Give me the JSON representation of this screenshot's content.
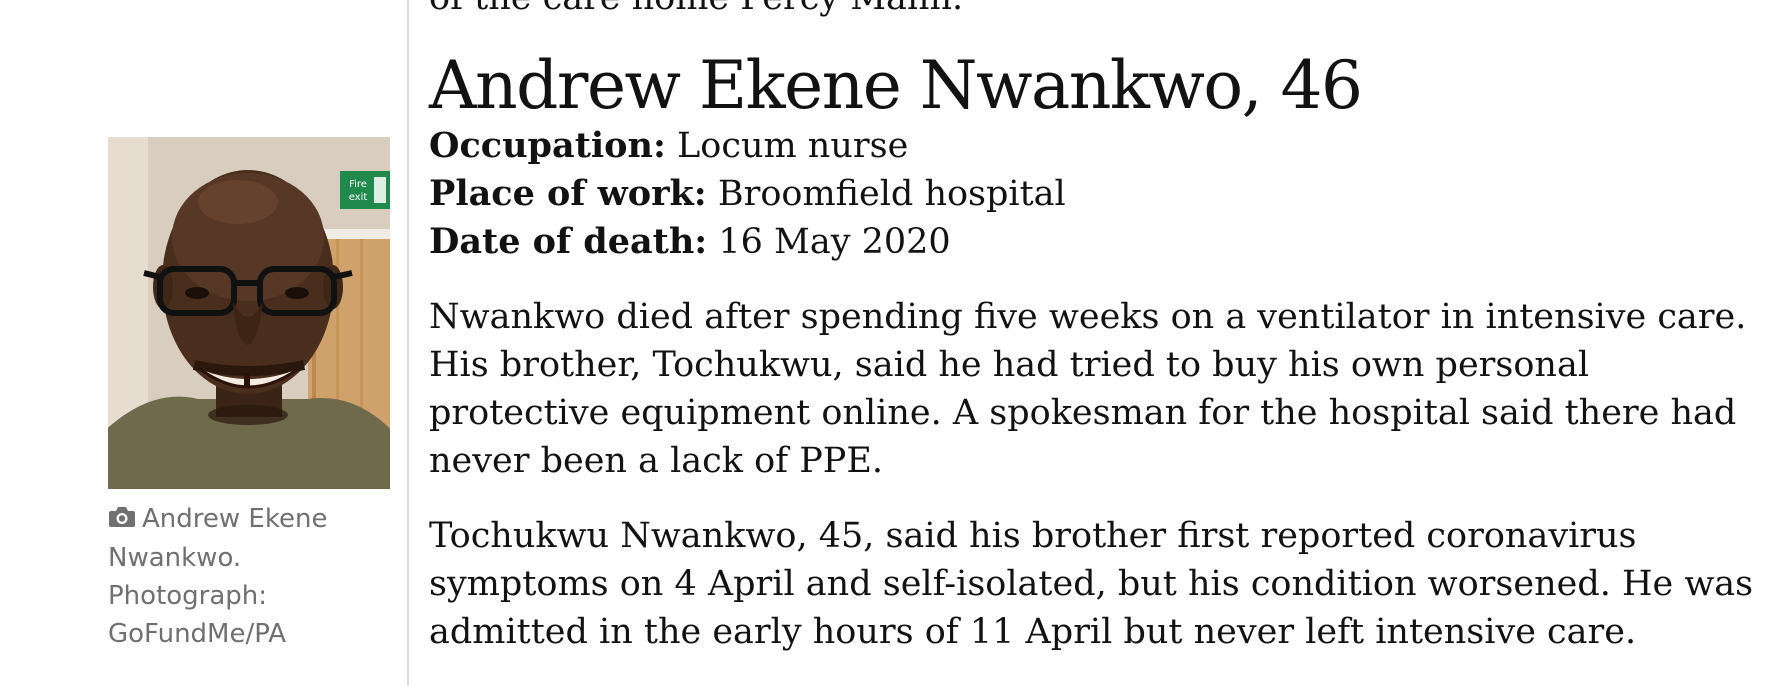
{
  "article": {
    "prev_fragment": "of the care home Percy Mann.",
    "heading": "Andrew Ekene Nwankwo, 46",
    "facts": [
      {
        "label": "Occupation:",
        "value": "Locum nurse"
      },
      {
        "label": "Place of work:",
        "value": "Broomfield hospital"
      },
      {
        "label": "Date of death:",
        "value": "16 May 2020"
      }
    ],
    "paragraphs": [
      "Nwankwo died after spending five weeks on a ventilator in intensive care. His brother, Tochukwu, said he had tried to buy his own personal protective equipment online. A spokesman for the hospital said there had never been a lack of PPE.",
      "Tochukwu Nwankwo, 45, said his brother first reported coronavirus symptoms on 4 April and self-isolated, but his condition worsened. He was admitted in the early hours of 11 April but never left intensive care."
    ]
  },
  "figure": {
    "caption": "Andrew Ekene Nwankwo. Photograph: GoFundMe/PA",
    "caption_icon": "camera-icon",
    "fire_exit_sign": "Fire exit"
  },
  "colors": {
    "text": "#121212",
    "caption": "#707070",
    "rule": "#dcdcdc",
    "exit_sign": "#1f8a4c"
  }
}
